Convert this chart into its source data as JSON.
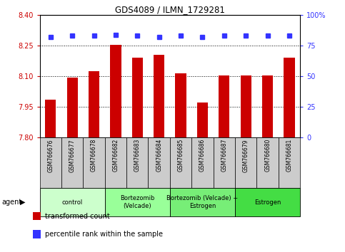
{
  "title": "GDS4089 / ILMN_1729281",
  "samples": [
    "GSM766676",
    "GSM766677",
    "GSM766678",
    "GSM766682",
    "GSM766683",
    "GSM766684",
    "GSM766685",
    "GSM766686",
    "GSM766687",
    "GSM766679",
    "GSM766680",
    "GSM766681"
  ],
  "bar_values": [
    7.985,
    8.095,
    8.125,
    8.255,
    8.19,
    8.205,
    8.115,
    7.97,
    8.105,
    8.105,
    8.105,
    8.19
  ],
  "percentile_values": [
    82,
    83,
    83,
    84,
    83,
    82,
    83,
    82,
    83,
    83,
    83,
    83
  ],
  "ylim": [
    7.8,
    8.4
  ],
  "yticks": [
    7.8,
    7.95,
    8.1,
    8.25,
    8.4
  ],
  "right_yticks": [
    0,
    25,
    50,
    75,
    100
  ],
  "bar_color": "#cc0000",
  "dot_color": "#3333ff",
  "groups": [
    {
      "label": "control",
      "start": 0,
      "end": 3,
      "color": "#ccffcc"
    },
    {
      "label": "Bortezomib\n(Velcade)",
      "start": 3,
      "end": 6,
      "color": "#99ff99"
    },
    {
      "label": "Bortezomib (Velcade) +\nEstrogen",
      "start": 6,
      "end": 9,
      "color": "#77ee77"
    },
    {
      "label": "Estrogen",
      "start": 9,
      "end": 12,
      "color": "#44dd44"
    }
  ],
  "legend_items": [
    {
      "color": "#cc0000",
      "label": "transformed count"
    },
    {
      "color": "#3333ff",
      "label": "percentile rank within the sample"
    }
  ],
  "agent_label": "agent",
  "background_color": "#ffffff",
  "plot_bg_color": "#ffffff",
  "tick_area_bg": "#cccccc"
}
